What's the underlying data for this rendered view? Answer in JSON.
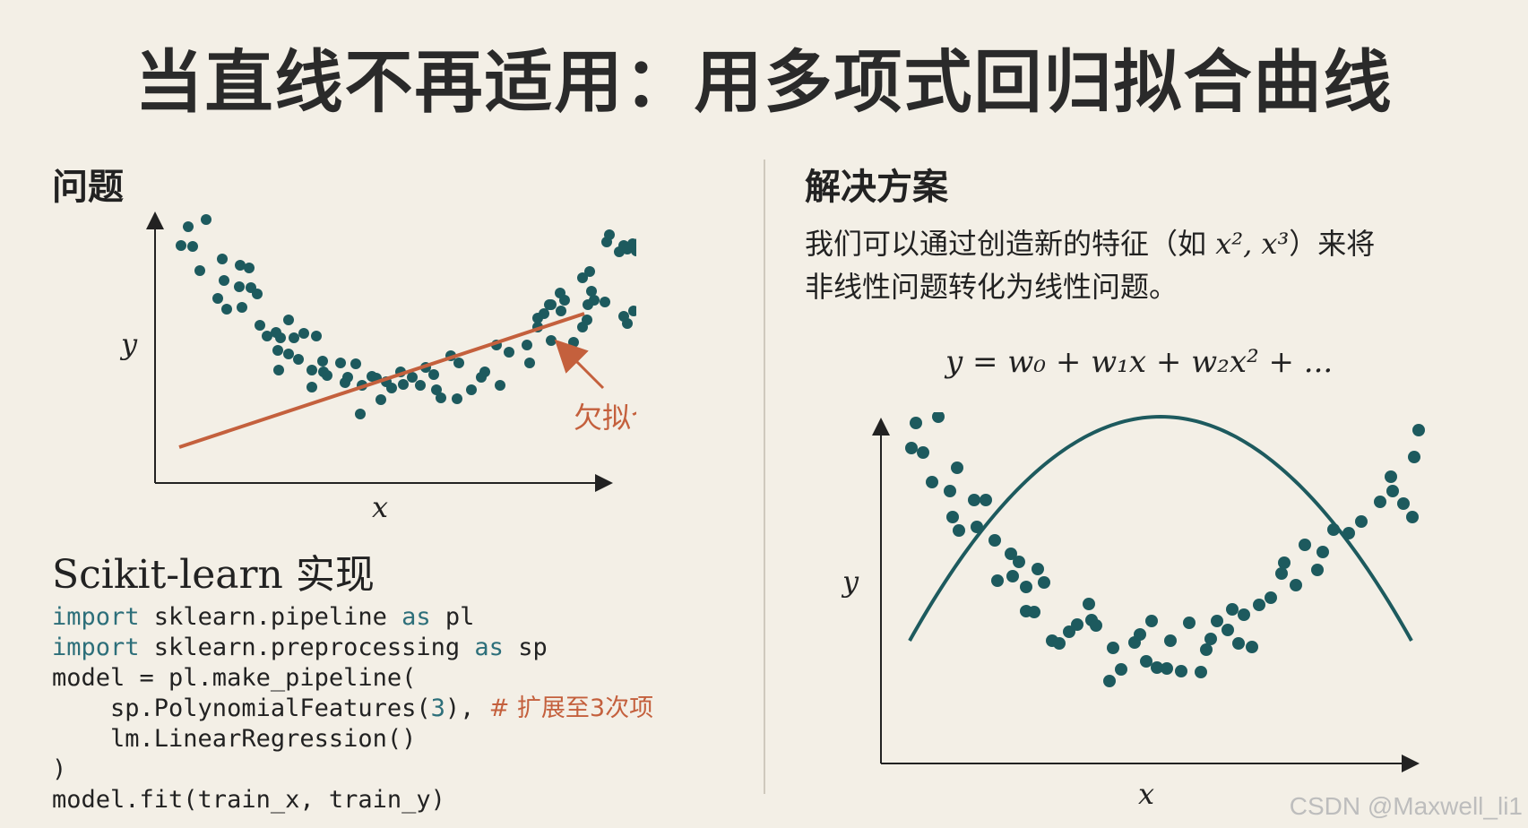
{
  "title": "当直线不再适用：用多项式回归拟合曲线",
  "left": {
    "heading": "问题",
    "annotation": "欠拟合",
    "xlabel": "x",
    "ylabel": "y"
  },
  "right": {
    "heading": "解决方案",
    "desc_line1_a": "我们可以通过创造新的特征（如 ",
    "desc_math": "x², x³",
    "desc_line1_b": "）来将",
    "desc_line2": "非线性问题转化为线性问题。",
    "formula": "y = w₀ + w₁x + w₂x² + ...",
    "xlabel": "x",
    "ylabel": "y"
  },
  "impl_heading": "Scikit-learn 实现",
  "code": {
    "l1_kw1": "import",
    "l1_rest": " sklearn.pipeline ",
    "l1_kw2": "as",
    "l1_end": " pl",
    "l2_kw1": "import",
    "l2_rest": " sklearn.preprocessing ",
    "l2_kw2": "as",
    "l2_end": " sp",
    "l3": "model = pl.make_pipeline(",
    "l4_a": "    sp.PolynomialFeatures(",
    "l4_num": "3",
    "l4_b": "), ",
    "l4_comment": "# 扩展至3次项",
    "l5": "    lm.LinearRegression()",
    "l6": ")",
    "l7": "model.fit(train_x, train_y)"
  },
  "watermark": "CSDN @Maxwell_li1",
  "colors": {
    "background": "#f3efe6",
    "dots": "#1d5a5e",
    "underfit_line": "#c4603d",
    "curve": "#1d5a5e",
    "keyword": "#2d6f7a"
  }
}
